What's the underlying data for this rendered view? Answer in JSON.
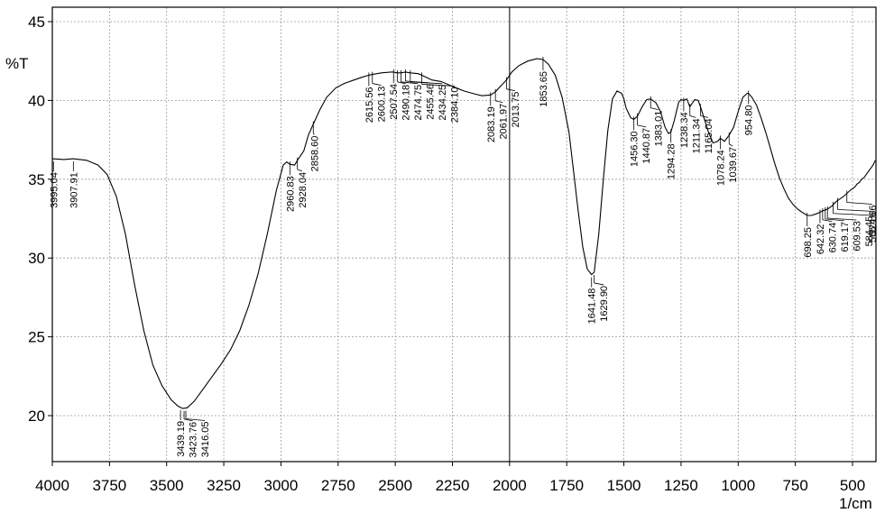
{
  "chart_data": {
    "type": "line",
    "title": "",
    "xlabel": "1/cm",
    "ylabel": "%T",
    "xlim": [
      4000,
      400
    ],
    "ylim": [
      17,
      46
    ],
    "x_ticks": [
      4000,
      3750,
      3500,
      3250,
      3000,
      2750,
      2500,
      2250,
      2000,
      1750,
      1500,
      1250,
      1000,
      750,
      500
    ],
    "x_tick_labels": [
      "4000",
      "3750",
      "3500",
      "3250",
      "3000",
      "2750",
      "2500",
      "2250",
      "2000",
      "1750",
      "1500",
      "1250",
      "1000",
      "750",
      "500"
    ],
    "y_ticks": [
      20,
      25,
      30,
      35,
      40,
      45
    ],
    "y_tick_labels": [
      "20",
      "25",
      "30",
      "35",
      "40",
      "45"
    ],
    "grid": true,
    "marker_line_x": 2000,
    "series": [
      {
        "x": [
          4000,
          3950,
          3907.91,
          3850,
          3800,
          3760,
          3720,
          3680,
          3640,
          3600,
          3560,
          3520,
          3480,
          3450,
          3430,
          3410,
          3380,
          3340,
          3300,
          3260,
          3220,
          3180,
          3140,
          3100,
          3060,
          3020,
          2990,
          2975,
          2960.83,
          2940,
          2928.04,
          2900,
          2880,
          2858.6,
          2830,
          2800,
          2760,
          2720,
          2680,
          2640,
          2615.56,
          2600.13,
          2560,
          2520,
          2507.54,
          2490.18,
          2474.75,
          2455.46,
          2434.25,
          2400,
          2384.1,
          2340,
          2300,
          2250,
          2200,
          2150,
          2120,
          2083.19,
          2061.97,
          2040,
          2013.75,
          1990,
          1960,
          1920,
          1880,
          1853.65,
          1830,
          1800,
          1770,
          1740,
          1720,
          1700,
          1680,
          1660,
          1641.48,
          1629.9,
          1610,
          1590,
          1570,
          1550,
          1530,
          1510,
          1500,
          1490,
          1470,
          1456.3,
          1440.87,
          1420,
          1400,
          1383.01,
          1360,
          1340,
          1320,
          1305,
          1294.28,
          1280,
          1260,
          1250,
          1238.34,
          1225,
          1211.34,
          1190,
          1175,
          1165.04,
          1150,
          1130,
          1110,
          1090,
          1078.24,
          1060,
          1039.67,
          1020,
          1000,
          980,
          960,
          954.8,
          940,
          920,
          900,
          880,
          860,
          840,
          820,
          800,
          780,
          760,
          740,
          720,
          698.25,
          680,
          660,
          642.32,
          630.74,
          619.17,
          609.53,
          600,
          590,
          584.45,
          570,
          565.16,
          550,
          540,
          524.66,
          510,
          500,
          490,
          480,
          470,
          460,
          450,
          440,
          430,
          420,
          410,
          400
        ],
        "y": [
          36.3,
          36.25,
          36.3,
          36.2,
          35.9,
          35.3,
          33.9,
          31.5,
          28.3,
          25.4,
          23.2,
          21.9,
          21.0,
          20.6,
          20.45,
          20.5,
          20.9,
          21.7,
          22.5,
          23.3,
          24.2,
          25.4,
          27.0,
          29.0,
          31.5,
          34.3,
          35.9,
          36.1,
          35.95,
          35.9,
          36.2,
          36.8,
          37.8,
          38.5,
          39.4,
          40.2,
          40.8,
          41.1,
          41.3,
          41.5,
          41.6,
          41.65,
          41.75,
          41.8,
          41.8,
          41.75,
          41.75,
          41.8,
          41.75,
          41.7,
          41.6,
          41.3,
          41.2,
          40.9,
          40.6,
          40.4,
          40.3,
          40.35,
          40.55,
          40.9,
          41.3,
          41.8,
          42.2,
          42.5,
          42.65,
          42.6,
          42.3,
          41.6,
          40.2,
          38.0,
          35.5,
          33.0,
          30.7,
          29.3,
          28.95,
          29.1,
          31.5,
          35.0,
          38.1,
          40.1,
          40.6,
          40.45,
          40.1,
          39.5,
          38.9,
          38.8,
          39.0,
          39.6,
          40.05,
          40.1,
          39.85,
          39.3,
          38.3,
          37.9,
          38.0,
          38.7,
          39.9,
          40.05,
          40.0,
          40.1,
          39.6,
          40.05,
          40.0,
          39.6,
          38.9,
          38.0,
          37.3,
          37.4,
          37.6,
          37.4,
          37.8,
          38.3,
          39.3,
          40.2,
          40.45,
          40.45,
          40.2,
          39.7,
          38.9,
          38.0,
          37.0,
          36.0,
          35.1,
          34.4,
          33.8,
          33.4,
          33.1,
          32.9,
          32.7,
          32.7,
          32.8,
          32.9,
          33.0,
          33.05,
          33.1,
          33.2,
          33.3,
          33.4,
          33.6,
          33.65,
          33.8,
          33.9,
          34.1,
          34.3,
          34.4,
          34.5,
          34.7,
          34.8,
          35.0,
          35.1,
          35.3,
          35.5,
          35.7,
          35.9,
          36.2
        ]
      }
    ],
    "peaks": [
      {
        "x": 3995.04,
        "label": "3995.04"
      },
      {
        "x": 3907.91,
        "label": "3907.91"
      },
      {
        "x": 3439.19,
        "label": "3439.19"
      },
      {
        "x": 3423.76,
        "label": "3423.76"
      },
      {
        "x": 3416.05,
        "label": "3416.05"
      },
      {
        "x": 2960.83,
        "label": "2960.83"
      },
      {
        "x": 2928.04,
        "label": "2928.04"
      },
      {
        "x": 2858.6,
        "label": "2858.60"
      },
      {
        "x": 2615.56,
        "label": "2615.56"
      },
      {
        "x": 2600.13,
        "label": "2600.13"
      },
      {
        "x": 2507.54,
        "label": "2507.54"
      },
      {
        "x": 2490.18,
        "label": "2490.18"
      },
      {
        "x": 2474.75,
        "label": "2474.75"
      },
      {
        "x": 2455.46,
        "label": "2455.46"
      },
      {
        "x": 2434.25,
        "label": "2434.25"
      },
      {
        "x": 2384.1,
        "label": "2384.10"
      },
      {
        "x": 2083.19,
        "label": "2083.19"
      },
      {
        "x": 2061.97,
        "label": "2061.97"
      },
      {
        "x": 2013.75,
        "label": "2013.75"
      },
      {
        "x": 1853.65,
        "label": "1853.65"
      },
      {
        "x": 1641.48,
        "label": "1641.48"
      },
      {
        "x": 1629.9,
        "label": "1629.90"
      },
      {
        "x": 1456.3,
        "label": "1456.30"
      },
      {
        "x": 1440.87,
        "label": "1440.87"
      },
      {
        "x": 1383.01,
        "label": "1383.01"
      },
      {
        "x": 1294.28,
        "label": "1294.28"
      },
      {
        "x": 1238.34,
        "label": "1238.34"
      },
      {
        "x": 1211.34,
        "label": "1211.34"
      },
      {
        "x": 1165.04,
        "label": "1165.04"
      },
      {
        "x": 1078.24,
        "label": "1078.24"
      },
      {
        "x": 1039.67,
        "label": "1039.67"
      },
      {
        "x": 954.8,
        "label": "954.80"
      },
      {
        "x": 698.25,
        "label": "698.25"
      },
      {
        "x": 642.32,
        "label": "642.32"
      },
      {
        "x": 630.74,
        "label": "630.74"
      },
      {
        "x": 619.17,
        "label": "619.17"
      },
      {
        "x": 609.53,
        "label": "609.53"
      },
      {
        "x": 584.45,
        "label": "584.45"
      },
      {
        "x": 565.16,
        "label": "565.16"
      },
      {
        "x": 524.66,
        "label": "524.66"
      }
    ]
  }
}
